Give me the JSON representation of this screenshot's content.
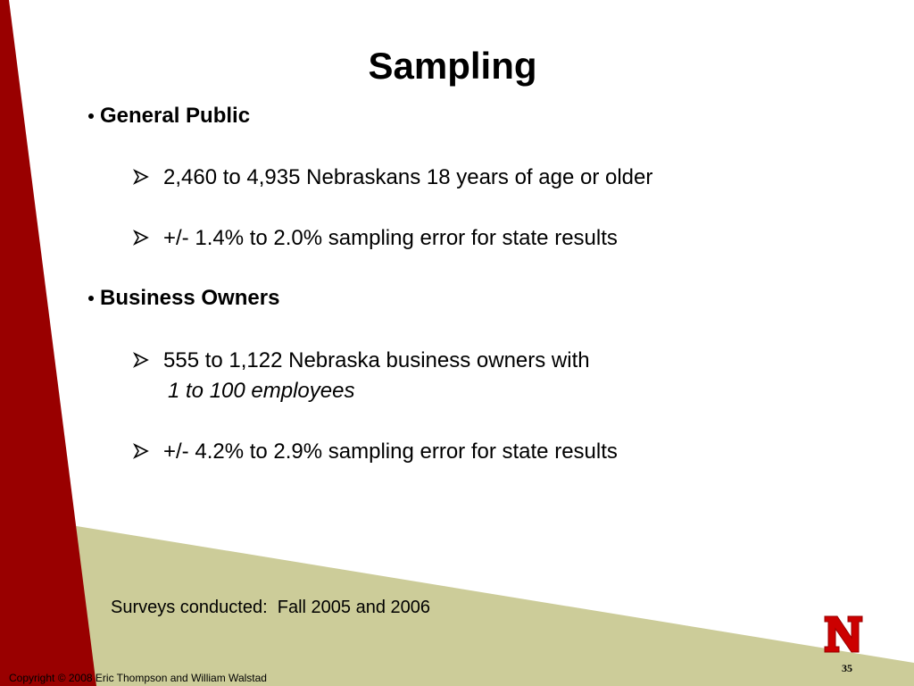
{
  "title": "Sampling",
  "sections": [
    {
      "heading": "General Public",
      "items": [
        {
          "text": "2,460 to 4,935 Nebraskans 18 years of age or older"
        },
        {
          "text": "+/- 1.4% to 2.0% sampling error for state results"
        }
      ]
    },
    {
      "heading": "Business Owners",
      "items": [
        {
          "text": "555 to 1,122 Nebraska business owners with",
          "emphasis": "1 to 100 employees"
        },
        {
          "text": "+/- 4.2% to 2.9% sampling error for state results"
        }
      ]
    }
  ],
  "note": "Surveys conducted:  Fall 2005 and 2006",
  "footer": {
    "copyright": "Copyright © 2008 Eric Thompson and William Walstad",
    "page_number": "35"
  }
}
